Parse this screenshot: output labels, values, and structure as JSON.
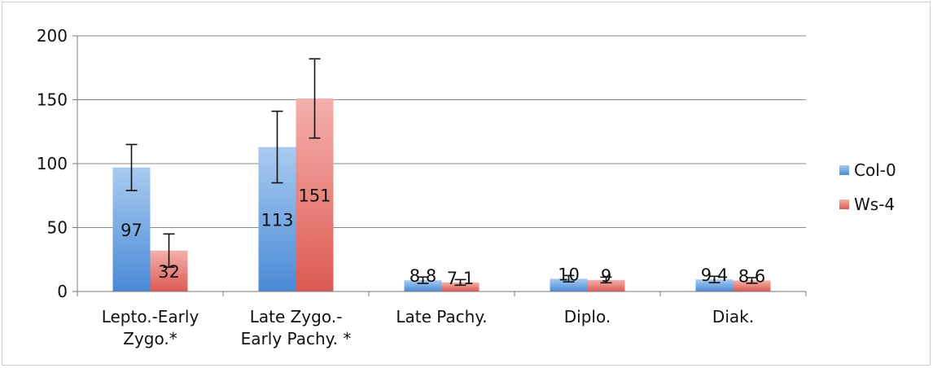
{
  "chart_data": {
    "type": "bar",
    "categories": [
      [
        "Lepto.-Early",
        "Zygo.*"
      ],
      [
        "Late Zygo.-",
        "Early Pachy. *"
      ],
      [
        "Late Pachy."
      ],
      [
        "Diplo."
      ],
      [
        "Diak."
      ]
    ],
    "series": [
      {
        "name": "Col-0",
        "values": [
          97,
          113,
          8.8,
          10,
          9.4
        ],
        "labels": [
          "97",
          "113",
          "8.8",
          "10",
          "9.4"
        ],
        "errors": [
          18,
          28,
          2.5,
          2.5,
          2.5
        ],
        "color": "#5b9bd5"
      },
      {
        "name": "Ws-4",
        "values": [
          32,
          151,
          7.1,
          9,
          8.6
        ],
        "labels": [
          "32",
          "151",
          "7.1",
          "9",
          "8.6"
        ],
        "errors": [
          13,
          31,
          2.2,
          2.2,
          2.2
        ],
        "color": "#e46c6c"
      }
    ],
    "ylim": [
      0,
      200
    ],
    "yticks": [
      "0",
      "50",
      "100",
      "150",
      "200"
    ],
    "grid": true,
    "legend_position": "right"
  }
}
